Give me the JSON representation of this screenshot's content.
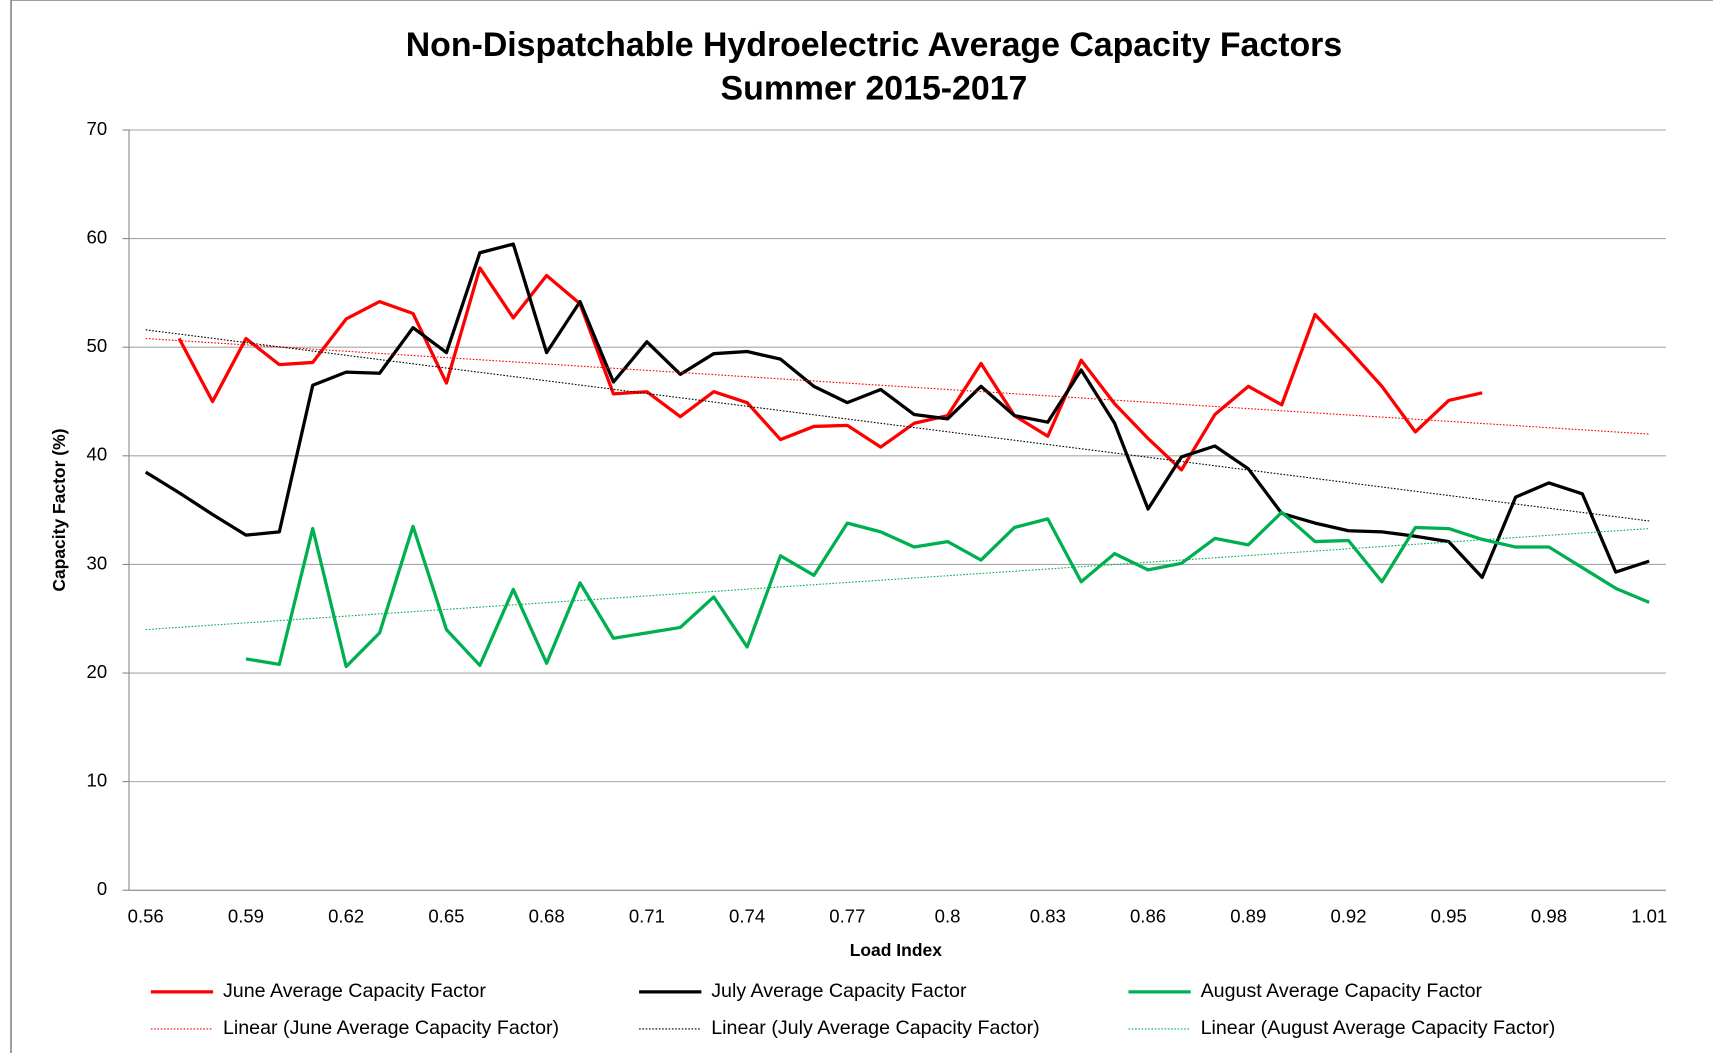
{
  "chart_data": {
    "type": "line",
    "title": "Non-Dispatchable Hydroelectric Average Capacity Factors",
    "subtitle": "Summer 2015-2017",
    "x_label": "Load Index",
    "y_label": "Capacity Factor (%)",
    "categories": [
      "0.56",
      null,
      null,
      "0.59",
      null,
      null,
      "0.62",
      null,
      null,
      "0.65",
      null,
      null,
      "0.68",
      null,
      null,
      "0.71",
      null,
      null,
      "0.74",
      null,
      null,
      "0.77",
      null,
      null,
      "0.8",
      null,
      null,
      "0.83",
      null,
      null,
      "0.86",
      null,
      null,
      "0.89",
      null,
      null,
      "0.92",
      null,
      null,
      "0.95",
      null,
      null,
      "0.98",
      null,
      null,
      "1.01"
    ],
    "ylim": [
      0,
      70
    ],
    "yticks": [
      0,
      10,
      20,
      30,
      40,
      50,
      60,
      70
    ],
    "grid": true,
    "legend": "bottom",
    "series": [
      {
        "name": "June Average Capacity Factor",
        "color": "#ff0000",
        "values": [
          null,
          50.8,
          45.0,
          50.8,
          48.4,
          48.6,
          52.6,
          54.2,
          53.1,
          46.7,
          57.3,
          52.7,
          56.6,
          54.0,
          45.7,
          45.9,
          43.6,
          45.9,
          44.9,
          41.5,
          42.7,
          42.8,
          40.8,
          43.0,
          43.7,
          48.5,
          43.7,
          41.8,
          48.8,
          44.8,
          41.6,
          38.7,
          43.8,
          46.4,
          44.7,
          53.0,
          49.8,
          46.4,
          42.2,
          45.1,
          45.8,
          null,
          null,
          null,
          null,
          null
        ]
      },
      {
        "name": "July Average Capacity Factor",
        "color": "#000000",
        "values": [
          38.5,
          36.6,
          34.6,
          32.7,
          33.0,
          46.5,
          47.7,
          47.6,
          51.8,
          49.5,
          58.7,
          59.5,
          49.5,
          54.2,
          46.8,
          50.5,
          47.5,
          49.4,
          49.6,
          48.9,
          46.4,
          44.9,
          46.1,
          43.8,
          43.4,
          46.4,
          43.7,
          43.1,
          47.9,
          43.0,
          35.1,
          39.9,
          40.9,
          38.8,
          34.7,
          33.8,
          33.1,
          33.0,
          32.6,
          32.1,
          28.8,
          36.2,
          37.5,
          36.5,
          29.3,
          30.3
        ]
      },
      {
        "name": "August Average Capacity Factor",
        "color": "#00b050",
        "values": [
          null,
          null,
          null,
          21.3,
          20.8,
          33.3,
          20.6,
          23.7,
          33.5,
          24.0,
          20.7,
          27.7,
          20.9,
          28.3,
          23.2,
          23.7,
          24.2,
          27.0,
          22.4,
          30.8,
          29.0,
          33.8,
          33.0,
          31.6,
          32.1,
          30.4,
          33.4,
          34.2,
          28.4,
          31.0,
          29.5,
          30.1,
          32.4,
          31.8,
          34.8,
          32.1,
          32.2,
          28.4,
          33.4,
          33.3,
          32.3,
          31.6,
          31.6,
          29.7,
          27.8,
          26.5
        ]
      }
    ],
    "trendlines": [
      {
        "name": "Linear (June Average Capacity Factor)",
        "color": "#ff0000",
        "start": 50.8,
        "end": 42.0
      },
      {
        "name": "Linear (July Average Capacity Factor)",
        "color": "#000000",
        "start": 51.6,
        "end": 34.0
      },
      {
        "name": "Linear (August Average Capacity Factor)",
        "color": "#00b050",
        "start": 24.0,
        "end": 33.3
      }
    ]
  }
}
